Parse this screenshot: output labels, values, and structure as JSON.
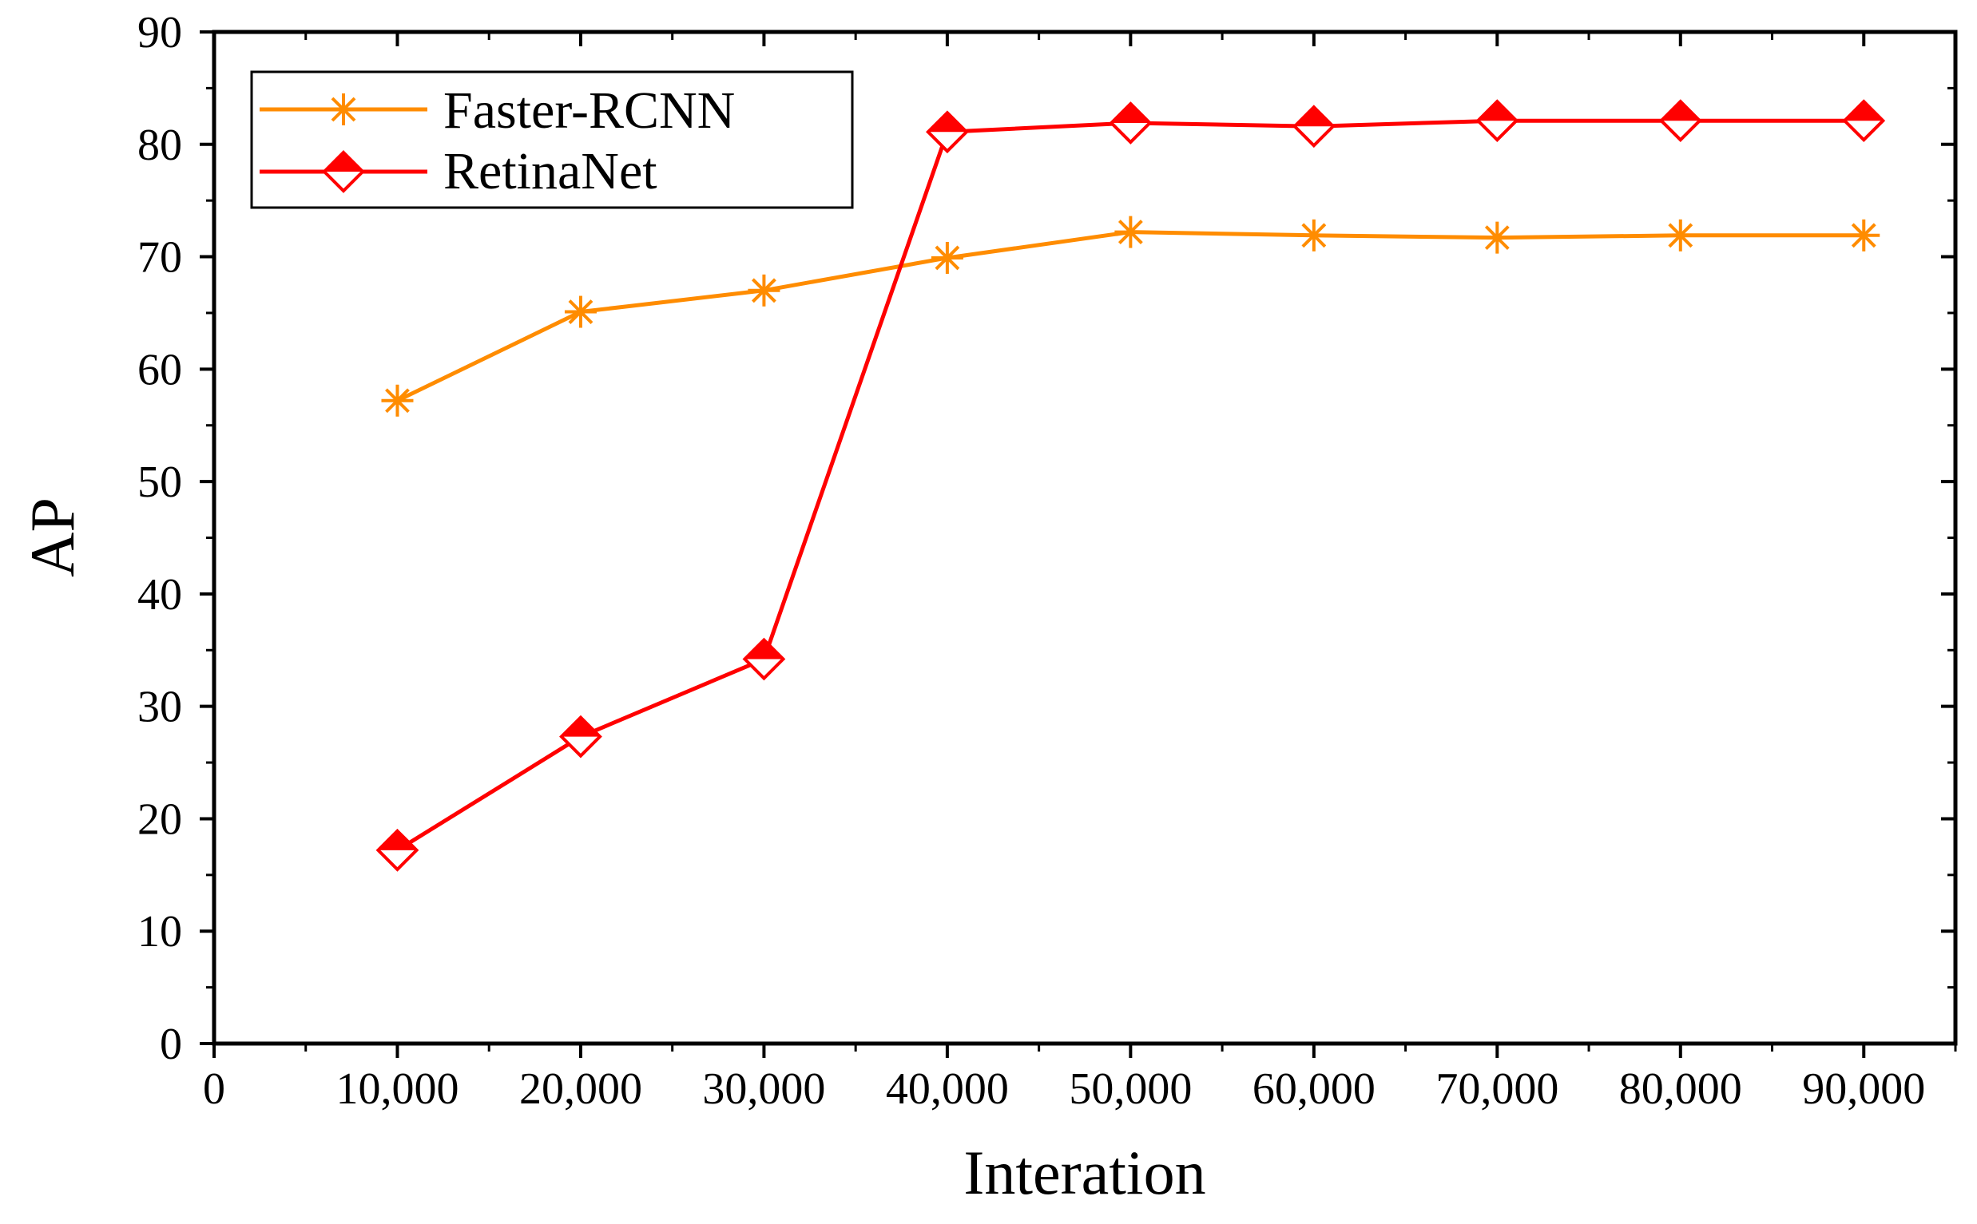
{
  "chart_data": {
    "type": "line",
    "title": "",
    "xlabel": "Interation",
    "ylabel": "AP",
    "xlim": [
      0,
      95000
    ],
    "ylim": [
      0,
      90
    ],
    "x_ticks": [
      0,
      10000,
      20000,
      30000,
      40000,
      50000,
      60000,
      70000,
      80000,
      90000
    ],
    "x_tick_labels": [
      "0",
      "10,000",
      "20,000",
      "30,000",
      "40,000",
      "50,000",
      "60,000",
      "70,000",
      "80,000",
      "90,000"
    ],
    "y_ticks": [
      0,
      10,
      20,
      30,
      40,
      50,
      60,
      70,
      80,
      90
    ],
    "y_tick_labels": [
      "0",
      "10",
      "20",
      "30",
      "40",
      "50",
      "60",
      "70",
      "80",
      "90"
    ],
    "grid": false,
    "legend_position": "top-left",
    "x": [
      10000,
      20000,
      30000,
      40000,
      50000,
      60000,
      70000,
      80000,
      90000
    ],
    "series": [
      {
        "name": "Faster-RCNN",
        "color": "#ff8c00",
        "marker": "asterisk",
        "values": [
          57.2,
          65.1,
          67.0,
          69.9,
          72.2,
          71.9,
          71.7,
          71.9,
          71.9
        ]
      },
      {
        "name": "RetinaNet",
        "color": "#ff0000",
        "marker": "half-filled-diamond",
        "values": [
          17.2,
          27.3,
          34.2,
          81.1,
          81.9,
          81.6,
          82.1,
          82.1,
          82.1
        ]
      }
    ]
  }
}
